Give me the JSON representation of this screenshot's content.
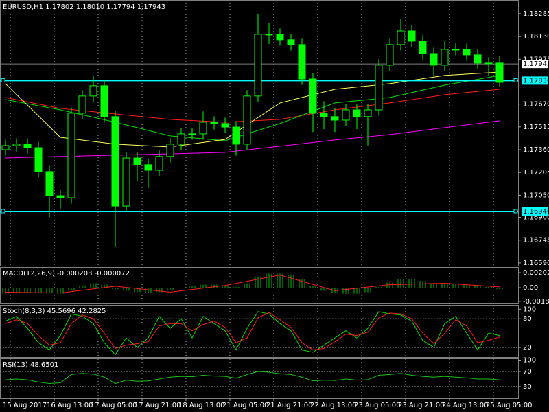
{
  "chart_data": {
    "type": "candlestick",
    "title": "EURUSD,H1  1.17802 1.18010 1.17794 1.17943",
    "color": "#00ff00",
    "open": [
      1.1736,
      1.17388,
      1.17398,
      1.17374,
      1.17211,
      1.17047,
      1.17033,
      1.17608,
      1.17725,
      1.17795,
      1.17585,
      1.16977,
      1.17304,
      1.17258,
      1.1722,
      1.17314,
      1.17398,
      1.17468,
      1.17468,
      1.17547,
      1.17538,
      1.17514,
      1.17398,
      1.17725,
      1.18145,
      1.18145,
      1.18108,
      1.18075,
      1.17841,
      1.17608,
      1.17585,
      1.17561,
      1.17631,
      1.17585,
      1.17631,
      1.17935,
      1.18075,
      1.18168,
      1.18098,
      1.18014,
      1.17935,
      1.18042,
      1.18042,
      1.18005,
      1.17949,
      1.17949
    ],
    "high": [
      1.17428,
      1.17438,
      1.17438,
      1.17414,
      1.17251,
      1.17087,
      1.17648,
      1.17765,
      1.1786,
      1.17835,
      1.17625,
      1.17344,
      1.17344,
      1.17298,
      1.17354,
      1.17438,
      1.17508,
      1.17508,
      1.1762,
      1.17587,
      1.17578,
      1.17554,
      1.17765,
      1.18285,
      1.1822,
      1.18185,
      1.18148,
      1.18115,
      1.17881,
      1.1769,
      1.1764,
      1.17671,
      1.17671,
      1.17671,
      1.17975,
      1.18115,
      1.1825,
      1.18208,
      1.18138,
      1.18054,
      1.181,
      1.18082,
      1.18082,
      1.18045,
      1.17989,
      1.18
    ],
    "low": [
      1.1732,
      1.17348,
      1.17334,
      1.17171,
      1.169,
      1.1696,
      1.16993,
      1.17568,
      1.17685,
      1.17545,
      1.167,
      1.16937,
      1.1715,
      1.171,
      1.1718,
      1.17274,
      1.17358,
      1.17428,
      1.17428,
      1.17498,
      1.17474,
      1.1732,
      1.17358,
      1.17685,
      1.1808,
      1.18068,
      1.18035,
      1.17801,
      1.1748,
      1.175,
      1.1748,
      1.17521,
      1.175,
      1.1739,
      1.17591,
      1.17895,
      1.18035,
      1.18058,
      1.17974,
      1.1786,
      1.17895,
      1.18002,
      1.17965,
      1.17909,
      1.1786,
      1.1779
    ],
    "close": [
      1.17388,
      1.17398,
      1.17374,
      1.17211,
      1.17047,
      1.17033,
      1.17608,
      1.17725,
      1.17795,
      1.17585,
      1.16977,
      1.17304,
      1.17258,
      1.1722,
      1.17314,
      1.17398,
      1.17468,
      1.17468,
      1.17547,
      1.17538,
      1.17514,
      1.17398,
      1.17725,
      1.18145,
      1.18145,
      1.18108,
      1.18075,
      1.17841,
      1.17608,
      1.17585,
      1.17561,
      1.17631,
      1.17585,
      1.17631,
      1.17935,
      1.18075,
      1.18168,
      1.18098,
      1.18014,
      1.17935,
      1.18042,
      1.18042,
      1.18005,
      1.17949,
      1.17949,
      1.17818
    ],
    "ylim": [
      1.16571,
      1.18378
    ],
    "yticks": [
      1.18285,
      {
        "value": 1.1813,
        "label": "1.18130"
      },
      1.17975,
      {
        "value": 1.1767,
        "label": "1.17670"
      },
      1.17515,
      {
        "value": 1.1736,
        "label": "1.17360"
      },
      1.17205,
      {
        "value": 1.1705,
        "label": "1.17050"
      },
      {
        "value": 1.169,
        "label": "1.16900"
      },
      1.16745,
      {
        "value": 1.1659,
        "label": "1.16590"
      }
    ],
    "xticks": [
      {
        "value": 0,
        "label": "15 Aug 2017"
      },
      {
        "value": 4,
        "label": "16 Aug 13:00"
      },
      {
        "value": 8,
        "label": "17 Aug 05:00"
      },
      {
        "value": 12,
        "label": "17 Aug 21:00"
      },
      {
        "value": 16,
        "label": "18 Aug 13:00"
      },
      {
        "value": 20,
        "label": "21 Aug 05:00"
      },
      {
        "value": 24,
        "label": "21 Aug 21:00"
      },
      {
        "value": 28,
        "label": "22 Aug 13:00"
      },
      {
        "value": 32,
        "label": "23 Aug 05:00"
      },
      {
        "value": 36,
        "label": "23 Aug 21:00"
      },
      {
        "value": 40,
        "label": "24 Aug 13:00"
      },
      {
        "value": 44,
        "label": "25 Aug 05:00"
      }
    ],
    "moving_averages": [
      {
        "color": "#ff00ff",
        "x": [
          0,
          5,
          10,
          15,
          20,
          25,
          30,
          35,
          40,
          45
        ],
        "values": [
          1.17304,
          1.17314,
          1.17323,
          1.17332,
          1.17342,
          1.17384,
          1.17426,
          1.17463,
          1.1751,
          1.17557
        ]
      },
      {
        "color": "#ff2020",
        "x": [
          0,
          5,
          10,
          15,
          20,
          25,
          30,
          35,
          40,
          45
        ],
        "values": [
          1.17715,
          1.17641,
          1.17603,
          1.17566,
          1.17547,
          1.17566,
          1.17631,
          1.17678,
          1.17734,
          1.17771
        ]
      },
      {
        "color": "#00e000",
        "x": [
          0,
          5,
          10,
          15,
          20,
          25,
          30,
          35,
          40,
          45
        ],
        "values": [
          1.17701,
          1.17631,
          1.17547,
          1.17454,
          1.17421,
          1.17538,
          1.17678,
          1.17715,
          1.17799,
          1.17865
        ]
      },
      {
        "color": "#ffff60",
        "x": [
          0,
          5,
          10,
          15,
          20,
          25,
          30,
          35,
          40,
          45
        ],
        "values": [
          1.17809,
          1.17444,
          1.17398,
          1.17379,
          1.1743,
          1.17678,
          1.17771,
          1.17809,
          1.17865,
          1.17888
        ]
      }
    ],
    "levels": [
      {
        "value": 1.1783,
        "label": "1.17830",
        "color": "#00ffff"
      },
      {
        "value": 1.1694,
        "label": "1.16940",
        "color": "#00ffff"
      }
    ],
    "current_price": 1.17943,
    "indicators": [
      {
        "title": "MACD(12,26,9) -0.000203 -0.000072",
        "ylim": [
          -0.002024,
          0.00276
        ],
        "yticks": [
          0.002024,
          {
            "value": 0,
            "label": "0.00"
          },
          -0.001828
        ],
        "histogram": {
          "color": "#00c000",
          "values": [
            -0.0008,
            -0.0007,
            -0.0006,
            -0.0006,
            -0.0007,
            -0.0008,
            -0.0003,
            0.0003,
            0.0006,
            0.0004,
            -0.0002,
            -0.0004,
            -0.0006,
            -0.0007,
            -0.0006,
            -0.0003,
            0,
            0.0002,
            0.0004,
            0.0004,
            0.0003,
            0.0001,
            0.0006,
            0.0015,
            0.0019,
            0.0019,
            0.0017,
            0.0011,
            0.0002,
            -0.0004,
            -0.0007,
            -0.0008,
            -0.0008,
            -0.0006,
            0.0001,
            0.0007,
            0.0011,
            0.0011,
            0.0009,
            0.0006,
            0.0005,
            0.0005,
            0.0004,
            0.0002,
            0.0001,
            -0.0002
          ]
        },
        "series": [
          {
            "color": "#ff2020",
            "x": [
              0,
              5,
              10,
              15,
              20,
              25,
              30,
              35,
              40,
              45
            ],
            "values": [
              -0.0006,
              -0.0007,
              0.0002,
              -0.0006,
              0.0003,
              0.0017,
              -0.0004,
              0.0004,
              0.0006,
              0.0001
            ]
          }
        ]
      },
      {
        "title": "Stoch(8,3,3) 45.5696 42.2825",
        "ylim": [
          0,
          109
        ],
        "yticks": [
          100,
          80,
          20
        ],
        "series": [
          {
            "color": "#00e000",
            "values": [
              75,
              85,
              60,
              30,
              15,
              45,
              90,
              85,
              70,
              30,
              5,
              40,
              20,
              40,
              85,
              60,
              80,
              40,
              85,
              70,
              55,
              15,
              60,
              95,
              90,
              70,
              55,
              15,
              10,
              25,
              40,
              55,
              40,
              60,
              95,
              90,
              88,
              75,
              35,
              20,
              70,
              85,
              50,
              15,
              50,
              45
            ]
          },
          {
            "color": "#ff2020",
            "values": [
              70,
              78,
              70,
              45,
              25,
              30,
              70,
              88,
              80,
              50,
              18,
              25,
              28,
              32,
              65,
              70,
              70,
              55,
              68,
              75,
              62,
              30,
              40,
              82,
              93,
              78,
              62,
              30,
              15,
              18,
              32,
              48,
              45,
              52,
              82,
              92,
              90,
              80,
              50,
              28,
              50,
              78,
              65,
              30,
              35,
              42
            ]
          }
        ]
      },
      {
        "title": "RSI(13) 48.6501",
        "ylim": [
          -1,
          104.5
        ],
        "yticks": [
          100,
          70,
          30
        ],
        "series": [
          {
            "color": "#20c020",
            "values": [
              48,
              50,
              48,
              42,
              38,
              40,
              62,
              65,
              63,
              55,
              38,
              47,
              44,
              45,
              50,
              55,
              57,
              56,
              60,
              58,
              57,
              52,
              62,
              70,
              68,
              64,
              62,
              55,
              45,
              47,
              46,
              50,
              47,
              48,
              60,
              62,
              65,
              60,
              57,
              55,
              57,
              55,
              53,
              50,
              50,
              48
            ]
          }
        ]
      }
    ]
  }
}
